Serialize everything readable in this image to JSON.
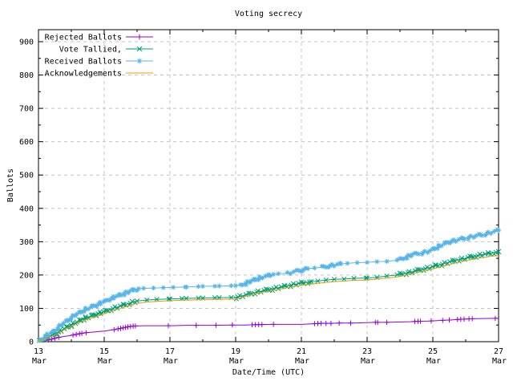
{
  "window": {
    "background": "#ffffff"
  },
  "chart_data": {
    "type": "line",
    "title": "Voting secrecy",
    "xlabel": "Date/Time (UTC)",
    "ylabel": "Ballots",
    "xlim": [
      13,
      27
    ],
    "ylim": [
      0,
      936
    ],
    "grid": true,
    "grid_color": "#c4c4c4",
    "legend_position": "top-left",
    "yticks": [
      0,
      100,
      200,
      300,
      400,
      500,
      600,
      700,
      800,
      900
    ],
    "yticks_minor": [
      50,
      150,
      250,
      350,
      450,
      550,
      650,
      750,
      850
    ],
    "xticks": [
      {
        "day": 13,
        "line1": "13",
        "line2": "Mar"
      },
      {
        "day": 15,
        "line1": "15",
        "line2": "Mar"
      },
      {
        "day": 17,
        "line1": "17",
        "line2": "Mar"
      },
      {
        "day": 19,
        "line1": "19",
        "line2": "Mar"
      },
      {
        "day": 21,
        "line1": "21",
        "line2": "Mar"
      },
      {
        "day": 23,
        "line1": "23",
        "line2": "Mar"
      },
      {
        "day": 25,
        "line1": "25",
        "line2": "Mar"
      },
      {
        "day": 27,
        "line1": "27",
        "line2": "Mar"
      }
    ],
    "xticks_minor": [
      14,
      16,
      18,
      20,
      22,
      24,
      26
    ],
    "series": [
      {
        "name": "Rejected Ballots",
        "color": "#9400d3",
        "marker": "plus",
        "points": [
          [
            13,
            0
          ],
          [
            13.15,
            2
          ],
          [
            13.3,
            5
          ],
          [
            13.45,
            9
          ],
          [
            13.6,
            13
          ],
          [
            13.8,
            16
          ],
          [
            14,
            19
          ],
          [
            14.15,
            22
          ],
          [
            14.3,
            25
          ],
          [
            14.45,
            27
          ],
          [
            14.7,
            29
          ],
          [
            15,
            32
          ],
          [
            15.3,
            36
          ],
          [
            15.45,
            39
          ],
          [
            15.6,
            42
          ],
          [
            15.75,
            45
          ],
          [
            15.9,
            47
          ],
          [
            16.2,
            48
          ],
          [
            17,
            48
          ],
          [
            17.5,
            49
          ],
          [
            18.3,
            49
          ],
          [
            18.85,
            50
          ],
          [
            19.3,
            50
          ],
          [
            19.6,
            51
          ],
          [
            20.1,
            52
          ],
          [
            21,
            52
          ],
          [
            21.4,
            54
          ],
          [
            21.6,
            55
          ],
          [
            21.9,
            55
          ],
          [
            22.2,
            56
          ],
          [
            22.6,
            56
          ],
          [
            23.25,
            58
          ],
          [
            23.6,
            58
          ],
          [
            24.3,
            60
          ],
          [
            24.5,
            61
          ],
          [
            24.9,
            62
          ],
          [
            25.3,
            64
          ],
          [
            25.5,
            65
          ],
          [
            25.8,
            67
          ],
          [
            26,
            68
          ],
          [
            26.3,
            69
          ],
          [
            26.9,
            70
          ],
          [
            27,
            70
          ]
        ],
        "marker_days": [
          13.3,
          13.4,
          13.5,
          13.62,
          14.05,
          14.15,
          14.25,
          14.32,
          14.45,
          15.3,
          15.42,
          15.5,
          15.58,
          15.65,
          15.72,
          15.8,
          15.88,
          15.95,
          16.95,
          17.8,
          18.4,
          18.9,
          19.5,
          19.6,
          19.7,
          19.8,
          20.15,
          21.4,
          21.5,
          21.6,
          21.75,
          21.9,
          22.15,
          22.5,
          23.25,
          23.32,
          23.6,
          24.45,
          24.55,
          24.62,
          24.95,
          25.3,
          25.5,
          25.75,
          25.85,
          25.95,
          26.1,
          26.2,
          26.9
        ]
      },
      {
        "name": "Vote Tallied,",
        "color": "#009e73",
        "marker": "cross",
        "points": [
          [
            13,
            0
          ],
          [
            13.1,
            6
          ],
          [
            13.25,
            13
          ],
          [
            13.4,
            19
          ],
          [
            13.55,
            26
          ],
          [
            13.7,
            34
          ],
          [
            13.85,
            43
          ],
          [
            14,
            50
          ],
          [
            14.15,
            58
          ],
          [
            14.3,
            65
          ],
          [
            14.45,
            72
          ],
          [
            14.6,
            77
          ],
          [
            14.75,
            82
          ],
          [
            14.9,
            87
          ],
          [
            15,
            90
          ],
          [
            15.2,
            97
          ],
          [
            15.4,
            104
          ],
          [
            15.6,
            110
          ],
          [
            15.8,
            116
          ],
          [
            16,
            122
          ],
          [
            16.3,
            125
          ],
          [
            16.6,
            127
          ],
          [
            17,
            128
          ],
          [
            17.5,
            130
          ],
          [
            18,
            131
          ],
          [
            18.5,
            132
          ],
          [
            19,
            133
          ],
          [
            19.15,
            136
          ],
          [
            19.3,
            140
          ],
          [
            19.5,
            145
          ],
          [
            19.7,
            150
          ],
          [
            19.9,
            154
          ],
          [
            20.1,
            158
          ],
          [
            20.3,
            162
          ],
          [
            20.5,
            166
          ],
          [
            20.7,
            170
          ],
          [
            20.9,
            174
          ],
          [
            21.1,
            177
          ],
          [
            21.3,
            180
          ],
          [
            21.5,
            182
          ],
          [
            21.75,
            185
          ],
          [
            22,
            187
          ],
          [
            22.3,
            188
          ],
          [
            22.6,
            190
          ],
          [
            23,
            191
          ],
          [
            23.3,
            193
          ],
          [
            23.6,
            197
          ],
          [
            23.9,
            200
          ],
          [
            24.1,
            204
          ],
          [
            24.3,
            208
          ],
          [
            24.5,
            213
          ],
          [
            24.7,
            218
          ],
          [
            24.9,
            222
          ],
          [
            25.1,
            228
          ],
          [
            25.3,
            233
          ],
          [
            25.5,
            239
          ],
          [
            25.7,
            244
          ],
          [
            25.9,
            248
          ],
          [
            26.1,
            253
          ],
          [
            26.3,
            257
          ],
          [
            26.5,
            261
          ],
          [
            26.7,
            264
          ],
          [
            26.85,
            267
          ],
          [
            27,
            270
          ]
        ]
      },
      {
        "name": "Received Ballots",
        "color": "#56b4e9",
        "marker": "asterisk",
        "points": [
          [
            13,
            0
          ],
          [
            13.05,
            4
          ],
          [
            13.15,
            12
          ],
          [
            13.3,
            22
          ],
          [
            13.45,
            30
          ],
          [
            13.6,
            42
          ],
          [
            13.75,
            55
          ],
          [
            13.9,
            65
          ],
          [
            14,
            72
          ],
          [
            14.15,
            82
          ],
          [
            14.3,
            90
          ],
          [
            14.45,
            98
          ],
          [
            14.6,
            104
          ],
          [
            14.75,
            110
          ],
          [
            14.9,
            116
          ],
          [
            15,
            120
          ],
          [
            15.15,
            128
          ],
          [
            15.3,
            133
          ],
          [
            15.45,
            139
          ],
          [
            15.6,
            144
          ],
          [
            15.75,
            150
          ],
          [
            15.9,
            156
          ],
          [
            16.05,
            159
          ],
          [
            16.2,
            160
          ],
          [
            16.5,
            161
          ],
          [
            16.8,
            162
          ],
          [
            17.1,
            163
          ],
          [
            17.5,
            164
          ],
          [
            18,
            166
          ],
          [
            18.5,
            167
          ],
          [
            19,
            168
          ],
          [
            19.15,
            170
          ],
          [
            19.3,
            175
          ],
          [
            19.45,
            181
          ],
          [
            19.6,
            187
          ],
          [
            19.75,
            192
          ],
          [
            19.9,
            196
          ],
          [
            20,
            198
          ],
          [
            20.15,
            202
          ],
          [
            20.3,
            204
          ],
          [
            20.6,
            205
          ],
          [
            20.75,
            209
          ],
          [
            20.9,
            213
          ],
          [
            21,
            215
          ],
          [
            21.2,
            219
          ],
          [
            21.4,
            221
          ],
          [
            21.6,
            223
          ],
          [
            21.8,
            227
          ],
          [
            22,
            230
          ],
          [
            22.2,
            233
          ],
          [
            22.4,
            235
          ],
          [
            22.7,
            237
          ],
          [
            23,
            238
          ],
          [
            23.3,
            240
          ],
          [
            23.6,
            241
          ],
          [
            23.9,
            244
          ],
          [
            24.05,
            248
          ],
          [
            24.2,
            254
          ],
          [
            24.35,
            260
          ],
          [
            24.5,
            264
          ],
          [
            24.7,
            267
          ],
          [
            24.9,
            272
          ],
          [
            25.05,
            280
          ],
          [
            25.2,
            287
          ],
          [
            25.35,
            294
          ],
          [
            25.5,
            300
          ],
          [
            25.7,
            304
          ],
          [
            25.9,
            309
          ],
          [
            26.1,
            313
          ],
          [
            26.3,
            317
          ],
          [
            26.5,
            321
          ],
          [
            26.7,
            326
          ],
          [
            26.85,
            330
          ],
          [
            27,
            334
          ]
        ]
      },
      {
        "name": "Acknowledgements",
        "color": "#e69f00",
        "marker": "none",
        "points": [
          [
            13,
            0
          ],
          [
            13.1,
            4
          ],
          [
            13.25,
            10
          ],
          [
            13.4,
            16
          ],
          [
            13.55,
            23
          ],
          [
            13.7,
            31
          ],
          [
            13.85,
            39
          ],
          [
            14,
            46
          ],
          [
            14.2,
            56
          ],
          [
            14.4,
            64
          ],
          [
            14.6,
            71
          ],
          [
            14.8,
            77
          ],
          [
            15,
            84
          ],
          [
            15.25,
            92
          ],
          [
            15.5,
            100
          ],
          [
            15.75,
            108
          ],
          [
            16,
            115
          ],
          [
            16.3,
            119
          ],
          [
            16.6,
            121
          ],
          [
            17,
            123
          ],
          [
            17.5,
            125
          ],
          [
            18,
            126
          ],
          [
            18.5,
            127
          ],
          [
            19,
            128
          ],
          [
            19.2,
            133
          ],
          [
            19.4,
            139
          ],
          [
            19.6,
            144
          ],
          [
            19.8,
            148
          ],
          [
            20,
            151
          ],
          [
            20.25,
            156
          ],
          [
            20.5,
            161
          ],
          [
            20.75,
            165
          ],
          [
            21,
            169
          ],
          [
            21.25,
            172
          ],
          [
            21.5,
            175
          ],
          [
            21.75,
            178
          ],
          [
            22,
            180
          ],
          [
            22.3,
            182
          ],
          [
            22.6,
            184
          ],
          [
            23,
            185
          ],
          [
            23.3,
            188
          ],
          [
            23.6,
            191
          ],
          [
            23.9,
            194
          ],
          [
            24.1,
            198
          ],
          [
            24.3,
            202
          ],
          [
            24.5,
            207
          ],
          [
            24.7,
            212
          ],
          [
            24.9,
            216
          ],
          [
            25.1,
            221
          ],
          [
            25.3,
            226
          ],
          [
            25.5,
            231
          ],
          [
            25.7,
            236
          ],
          [
            25.9,
            241
          ],
          [
            26.1,
            245
          ],
          [
            26.3,
            249
          ],
          [
            26.5,
            252
          ],
          [
            26.7,
            255
          ],
          [
            27,
            259
          ]
        ]
      }
    ]
  }
}
